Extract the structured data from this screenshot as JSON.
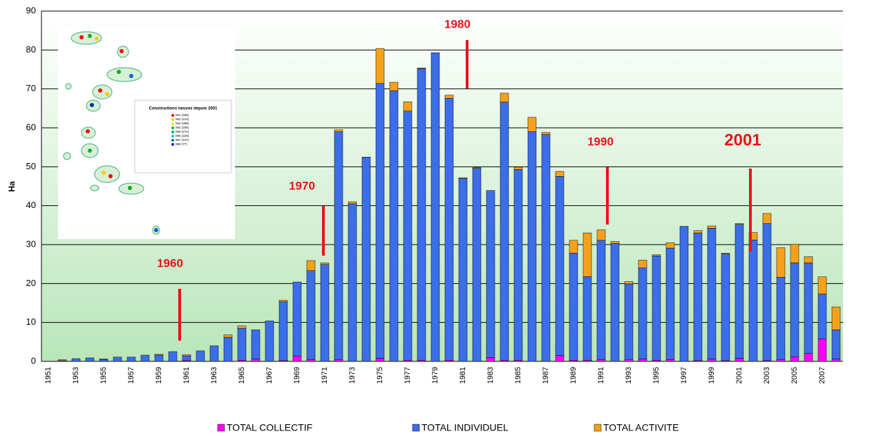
{
  "chart_data": {
    "type": "stacked_bar",
    "ylabel": "Ha",
    "categories": [
      "1951",
      null,
      "1953",
      null,
      "1955",
      null,
      "1957",
      null,
      "1959",
      null,
      "1961",
      null,
      "1963",
      null,
      "1965",
      null,
      "1967",
      null,
      "1969",
      null,
      "1971",
      null,
      "1973",
      null,
      "1975",
      null,
      "1977",
      null,
      "1979",
      null,
      "1981",
      null,
      "1983",
      null,
      "1985",
      null,
      "1987",
      null,
      "1989",
      null,
      "1991",
      null,
      "1993",
      null,
      "1995",
      null,
      "1997",
      null,
      "1999",
      null,
      "2001",
      null,
      "2003",
      null,
      "2005",
      null,
      "2007",
      null
    ],
    "series": [
      {
        "name": "TOTAL COLLECTIF",
        "color": "#ff00ff",
        "values": [
          0,
          0,
          0,
          0,
          0,
          0,
          0,
          0,
          0,
          0,
          0.2,
          0,
          0,
          0,
          0.3,
          0.6,
          0,
          0.2,
          1.4,
          0.5,
          0,
          0.4,
          0,
          0,
          0.8,
          0,
          0.3,
          0.3,
          0,
          0.3,
          0,
          0,
          1.0,
          0.3,
          0.3,
          0,
          0,
          1.5,
          0.3,
          0.3,
          0.5,
          0,
          0.4,
          0.6,
          0.3,
          0.5,
          0,
          0.2,
          0.6,
          0.2,
          0.8,
          0,
          0.2,
          0.5,
          1.2,
          2.0,
          5.8,
          0.6
        ]
      },
      {
        "name": "TOTAL INDIVIDUEL",
        "color": "#3b6ee8",
        "values": [
          0,
          0.2,
          0.7,
          0.9,
          0.5,
          1.1,
          1.1,
          1.6,
          1.6,
          2.5,
          1.2,
          2.7,
          4.0,
          6.2,
          8.2,
          7.5,
          10.4,
          15.1,
          19.0,
          22.8,
          24.9,
          58.6,
          40.5,
          52.5,
          70.6,
          69.5,
          64.0,
          74.9,
          79.3,
          67.3,
          47.0,
          49.6,
          42.9,
          66.3,
          49.0,
          59.0,
          58.3,
          46.0,
          27.5,
          21.5,
          30.6,
          30.3,
          19.5,
          23.4,
          26.8,
          28.6,
          34.7,
          32.8,
          33.6,
          27.4,
          34.4,
          31.2,
          35.2,
          21.1,
          24.1,
          23.3,
          11.5,
          7.5
        ]
      },
      {
        "name": "TOTAL ACTIVITE",
        "color": "#f5a11c",
        "values": [
          0,
          0.2,
          0,
          0,
          0.1,
          0,
          0,
          0,
          0.2,
          0,
          0.3,
          0,
          0,
          0.6,
          0.6,
          0,
          0,
          0.4,
          0,
          2.6,
          0.4,
          0.5,
          0.5,
          0,
          9.0,
          2.2,
          2.4,
          0.2,
          0,
          0.8,
          0.2,
          0.2,
          0,
          2.3,
          0.6,
          3.7,
          0.5,
          1.3,
          3.3,
          11.2,
          2.7,
          0.5,
          0.6,
          2.0,
          0.3,
          1.4,
          0,
          0.6,
          0.6,
          0.2,
          0.2,
          1.9,
          2.6,
          7.6,
          4.8,
          1.6,
          4.4,
          5.9
        ]
      }
    ],
    "ylim": [
      0,
      90
    ],
    "yticks": [
      0,
      10,
      20,
      30,
      40,
      50,
      60,
      70,
      80,
      90
    ],
    "grid": true,
    "annotations": [
      "1960",
      "1970",
      "1980",
      "1990",
      "2001"
    ],
    "inset": {
      "title": "Constructions neuves depuis 2001",
      "entries": [
        "061 (285)",
        "062 (243)",
        "063 (398)",
        "064 (185)",
        "065 (271)",
        "066 (226)",
        "067 (127)",
        "068 (77)"
      ]
    }
  }
}
